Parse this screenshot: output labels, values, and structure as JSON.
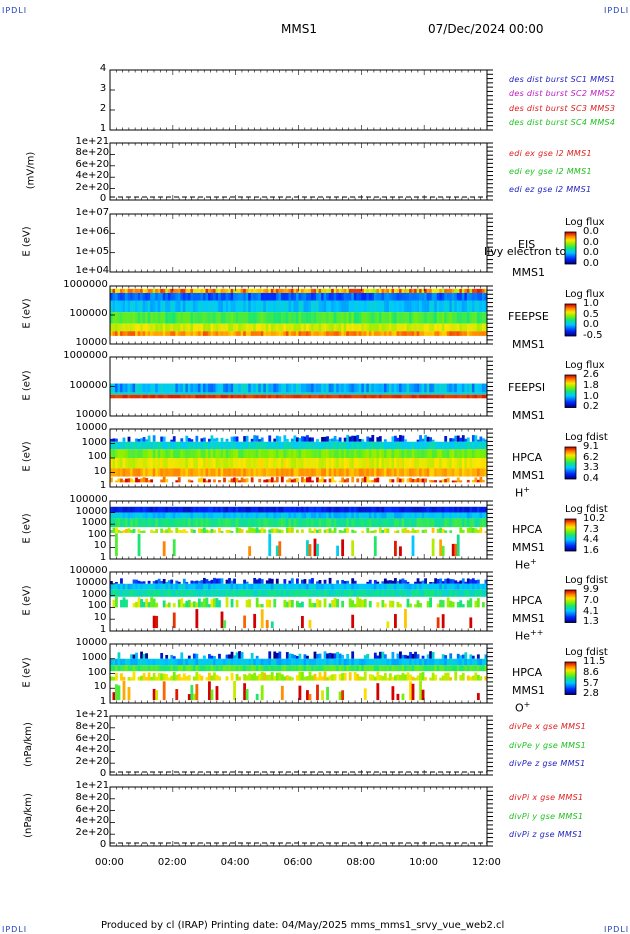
{
  "corners": {
    "tl": "IPDLI",
    "tr": "IPDLI",
    "bl": "IPDLI",
    "br": "IPDLI"
  },
  "header": {
    "title": "MMS1",
    "date": "07/Dec/2024 00:00"
  },
  "footer": {
    "text": "Produced by cl (IRAP)   Printing date: 04/May/2025   mms_mms1_srvy_vue_web2.cl"
  },
  "chart_data": [
    {
      "type": "line",
      "id": "dist",
      "ylim": [
        1,
        4
      ],
      "yticks": [
        "4",
        "3",
        "2",
        "1"
      ],
      "legend": [
        {
          "name": "des dist burst SC1 MMS1",
          "color": "#1f1fbf"
        },
        {
          "name": "des dist burst SC2 MMS2",
          "color": "#c020c0"
        },
        {
          "name": "des dist burst SC3 MMS3",
          "color": "#e02020"
        },
        {
          "name": "des dist burst SC4 MMS4",
          "color": "#20c020"
        }
      ]
    },
    {
      "type": "line",
      "id": "edi",
      "ylabel": "(mV/m)",
      "ylim": [
        0,
        1e+21
      ],
      "yticks": [
        "1e+21",
        "8e+20",
        "6e+20",
        "4e+20",
        "2e+20",
        "0"
      ],
      "legend": [
        {
          "name": "edi ex gse l2 MMS1",
          "color": "#e02020"
        },
        {
          "name": "edi ey gse l2 MMS1",
          "color": "#20c020"
        },
        {
          "name": "edi ez gse l2 MMS1",
          "color": "#1f1fbf"
        }
      ]
    },
    {
      "type": "heatmap",
      "id": "eis",
      "ylabel": "E (eV)",
      "yticks": [
        "1e+07",
        "1e+06",
        "1e+05",
        "1e+04"
      ],
      "side": [
        "EIS",
        "MMS1"
      ],
      "overlay": "Ilvy electron to",
      "cb_title": "Log flux",
      "cb_ticks": [
        "0.0",
        "0.0",
        "0.0",
        "0.0"
      ]
    },
    {
      "type": "heatmap",
      "id": "feepse",
      "ylabel": "E (eV)",
      "yticks": [
        "1000000",
        "100000",
        "10000"
      ],
      "side": [
        "FEEPSE",
        "MMS1"
      ],
      "cb_title": "Log flux",
      "cb_ticks": [
        "1.0",
        "0.5",
        "0.0",
        "-0.5"
      ]
    },
    {
      "type": "heatmap",
      "id": "feepsi",
      "ylabel": "E (eV)",
      "yticks": [
        "1000000",
        "100000",
        "10000"
      ],
      "side": [
        "FEEPSI",
        "MMS1"
      ],
      "cb_title": "Log flux",
      "cb_ticks": [
        "2.6",
        "1.8",
        "1.0",
        "0.2"
      ]
    },
    {
      "type": "heatmap",
      "id": "hpca_h",
      "ylabel": "E (eV)",
      "yticks": [
        "10000",
        "1000",
        "100",
        "10",
        "1"
      ],
      "side": [
        "HPCA",
        "MMS1"
      ],
      "species": "H",
      "charge": "+",
      "cb_title": "Log fdist",
      "cb_ticks": [
        "9.1",
        "6.2",
        "3.3",
        "0.4"
      ]
    },
    {
      "type": "heatmap",
      "id": "hpca_he",
      "ylabel": "E (eV)",
      "yticks": [
        "100000",
        "10000",
        "1000",
        "100",
        "10",
        "1"
      ],
      "side": [
        "HPCA",
        "MMS1"
      ],
      "species": "He",
      "charge": "+",
      "cb_title": "Log fdist",
      "cb_ticks": [
        "10.2",
        "7.3",
        "4.4",
        "1.6"
      ]
    },
    {
      "type": "heatmap",
      "id": "hpca_hepp",
      "ylabel": "E (eV)",
      "yticks": [
        "100000",
        "10000",
        "1000",
        "100",
        "10",
        "1"
      ],
      "side": [
        "HPCA",
        "MMS1"
      ],
      "species": "He",
      "charge": "++",
      "cb_title": "Log fdist",
      "cb_ticks": [
        "9.9",
        "7.0",
        "4.1",
        "1.3"
      ]
    },
    {
      "type": "heatmap",
      "id": "hpca_o",
      "ylabel": "E (eV)",
      "yticks": [
        "10000",
        "1000",
        "100",
        "10",
        "1"
      ],
      "side": [
        "HPCA",
        "MMS1"
      ],
      "species": "O",
      "charge": "+",
      "cb_title": "Log fdist",
      "cb_ticks": [
        "11.5",
        "8.6",
        "5.7",
        "2.8"
      ]
    },
    {
      "type": "line",
      "id": "divpe",
      "ylabel": "(nPa/km)",
      "ylim": [
        0,
        1e+21
      ],
      "yticks": [
        "1e+21",
        "8e+20",
        "6e+20",
        "4e+20",
        "2e+20",
        "0"
      ],
      "legend": [
        {
          "name": "divPe x gse MMS1",
          "color": "#e02020"
        },
        {
          "name": "divPe y gse MMS1",
          "color": "#20c020"
        },
        {
          "name": "divPe z gse MMS1",
          "color": "#1f1fbf"
        }
      ]
    },
    {
      "type": "line",
      "id": "divpi",
      "ylabel": "(nPa/km)",
      "ylim": [
        0,
        1e+21
      ],
      "yticks": [
        "1e+21",
        "8e+20",
        "6e+20",
        "4e+20",
        "2e+20",
        "0"
      ],
      "legend": [
        {
          "name": "divPi x gse MMS1",
          "color": "#e02020"
        },
        {
          "name": "divPi y gse MMS1",
          "color": "#20c020"
        },
        {
          "name": "divPi z gse MMS1",
          "color": "#1f1fbf"
        }
      ]
    }
  ],
  "x_axis": {
    "ticks": [
      "00:00",
      "02:00",
      "04:00",
      "06:00",
      "08:00",
      "10:00",
      "12:00"
    ],
    "range": [
      "00:00",
      "12:00"
    ]
  }
}
